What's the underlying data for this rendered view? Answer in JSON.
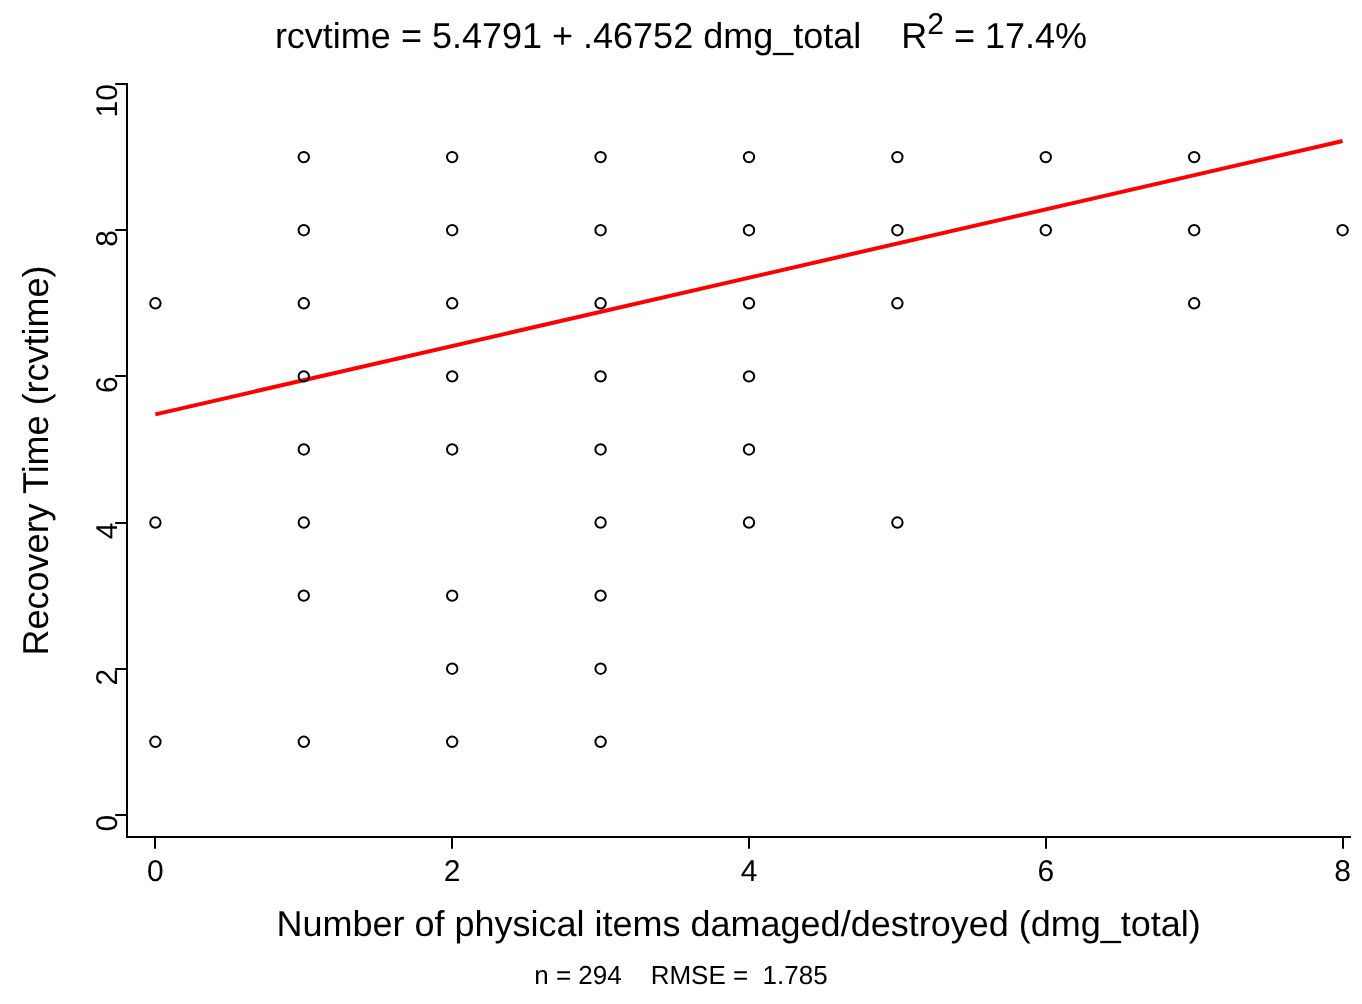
{
  "chart_data": {
    "type": "scatter",
    "title": "rcvtime = 5.4791 + .46752 dmg_total    R$^{2}$ = 17.4%",
    "xlabel": "Number of physical items damaged/destroyed (dmg_total)",
    "ylabel": "Recovery Time (rcvtime)",
    "annotations": [
      "n = 294    RMSE =  1.785"
    ],
    "series": [
      {
        "type": "scatter",
        "color": "#000000",
        "marker": "circle",
        "x": [
          0,
          0,
          0,
          1,
          1,
          1,
          1,
          1,
          1,
          1,
          1,
          2,
          2,
          2,
          2,
          2,
          2,
          2,
          2,
          3,
          3,
          3,
          3,
          3,
          3,
          3,
          3,
          3,
          4,
          4,
          4,
          4,
          4,
          4,
          5,
          5,
          5,
          5,
          6,
          6,
          7,
          7,
          7,
          8
        ],
        "values": [
          7,
          4,
          1,
          9,
          8,
          7,
          6,
          5,
          4,
          3,
          1,
          9,
          8,
          7,
          6,
          5,
          3,
          2,
          1,
          9,
          8,
          7,
          6,
          5,
          4,
          3,
          2,
          1,
          9,
          8,
          7,
          6,
          5,
          4,
          9,
          8,
          7,
          4,
          9,
          8,
          9,
          8,
          7,
          8
        ]
      },
      {
        "type": "line",
        "color": "#ff0000",
        "x": [
          0,
          8
        ],
        "values": [
          5.48,
          9.22
        ]
      }
    ],
    "xlim": [
      -0.19,
      8.05
    ],
    "ylim": [
      -0.3,
      10
    ],
    "xticks": [
      0,
      2,
      4,
      6,
      8
    ],
    "yticks": [
      0,
      2,
      4,
      6,
      8,
      10
    ],
    "grid": false,
    "legend": false
  }
}
